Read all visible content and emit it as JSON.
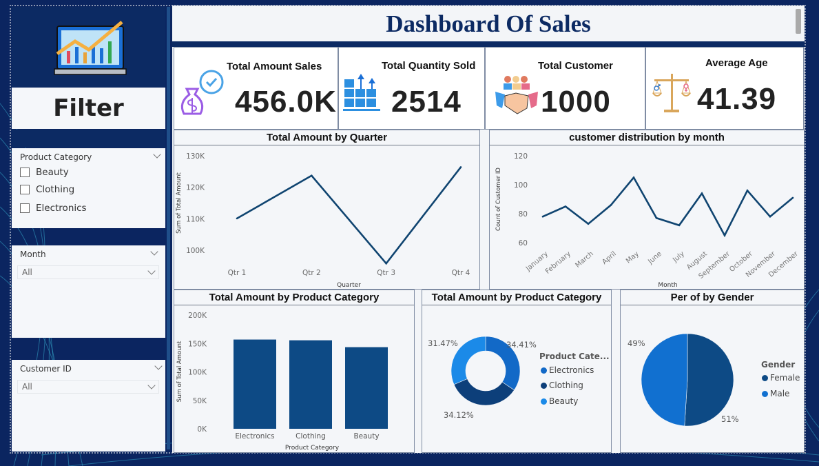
{
  "title": "Dashboard Of Sales",
  "colors": {
    "navy": "#0c2a63",
    "line": "#0f4470",
    "electronics": "#1269c7",
    "clothing": "#0d3f7a",
    "beauty": "#1b8ae8",
    "female": "#0d4a85",
    "male": "#1170d0"
  },
  "sidebar": {
    "logo_icon": "laptop-chart-icon",
    "filter_label": "Filter",
    "product_category": {
      "label": "Product Category",
      "options": [
        "Beauty",
        "Clothing",
        "Electronics"
      ]
    },
    "month": {
      "label": "Month",
      "value": "All"
    },
    "customer_id": {
      "label": "Customer ID",
      "value": "All"
    }
  },
  "kpis": [
    {
      "label": "Total Amount Sales",
      "value": "456.0K",
      "icon": "money-bag-gear-icon"
    },
    {
      "label": "Total Quantity Sold",
      "value": "2514",
      "icon": "boxes-pallet-icon"
    },
    {
      "label": "Total Customer",
      "value": "1000",
      "icon": "handshake-people-icon"
    },
    {
      "label": "Average Age",
      "value": "41.39",
      "icon": "gender-scale-icon"
    }
  ],
  "chart_data": [
    {
      "type": "line",
      "title": "Total Amount by Quarter",
      "xlabel": "Quarter",
      "ylabel": "Sum of Total Amount",
      "categories": [
        "Qtr 1",
        "Qtr 2",
        "Qtr 3",
        "Qtr 4"
      ],
      "values": [
        110100,
        123700,
        95800,
        126400
      ],
      "ylim": [
        100000,
        130000
      ],
      "yticks": [
        "100K",
        "110K",
        "120K",
        "130K"
      ]
    },
    {
      "type": "line",
      "title": "customer distribution by month",
      "xlabel": "Month",
      "ylabel": "Count of Customer ID",
      "categories": [
        "January",
        "February",
        "March",
        "April",
        "May",
        "June",
        "July",
        "August",
        "September",
        "October",
        "November",
        "December"
      ],
      "values": [
        78,
        85,
        73,
        86,
        105,
        77,
        72,
        94,
        65,
        96,
        78,
        91
      ],
      "ylim": [
        60,
        120
      ],
      "yticks": [
        "60",
        "80",
        "100",
        "120"
      ]
    },
    {
      "type": "bar",
      "title": "Total Amount by Product Category",
      "xlabel": "Product Category",
      "ylabel": "Sum of Total Amount",
      "categories": [
        "Electronics",
        "Clothing",
        "Beauty"
      ],
      "values": [
        156900,
        155600,
        143500
      ],
      "ylim": [
        0,
        200000
      ],
      "yticks": [
        "0K",
        "50K",
        "100K",
        "150K",
        "200K"
      ]
    },
    {
      "type": "pie",
      "donut": true,
      "title": "Total Amount by Product Category",
      "legend_title": "Product Cate...",
      "categories": [
        "Electronics",
        "Clothing",
        "Beauty"
      ],
      "values": [
        34.41,
        34.12,
        31.47
      ],
      "labels": [
        "34.41%",
        "34.12%",
        "31.47%"
      ],
      "legend": "right"
    },
    {
      "type": "pie",
      "title": "Per of by Gender",
      "legend_title": "Gender",
      "categories": [
        "Female",
        "Male"
      ],
      "values": [
        51,
        49
      ],
      "labels": [
        "51%",
        "49%"
      ],
      "legend": "right"
    }
  ]
}
